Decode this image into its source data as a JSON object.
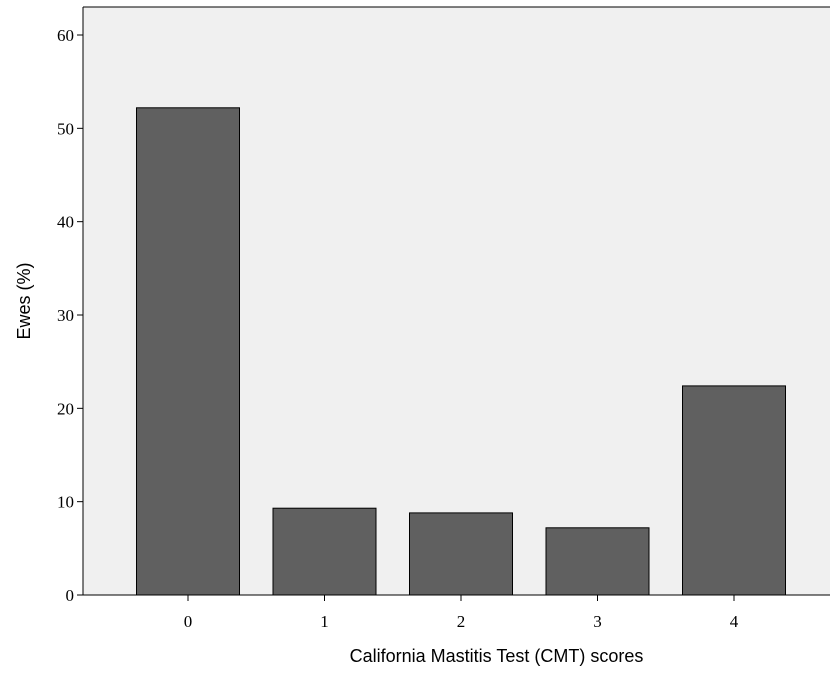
{
  "chart_data": {
    "type": "bar",
    "title": "",
    "xlabel": "California Mastitis Test (CMT) scores",
    "ylabel": "Ewes (%)",
    "categories": [
      "0",
      "1",
      "2",
      "3",
      "4"
    ],
    "values": [
      52.2,
      9.3,
      8.8,
      7.2,
      22.4
    ],
    "ylim": [
      0,
      63
    ],
    "yticks": [
      0,
      10,
      20,
      30,
      40,
      50,
      60
    ],
    "ytick_labels": [
      "0",
      "10",
      "20",
      "30",
      "40",
      "50",
      "60"
    ],
    "grid": false,
    "legend": "none",
    "colors": {
      "bar_fill": "#606060",
      "bar_stroke": "#000000",
      "plot_background": "#f0f0f0",
      "axis": "#000000"
    }
  }
}
